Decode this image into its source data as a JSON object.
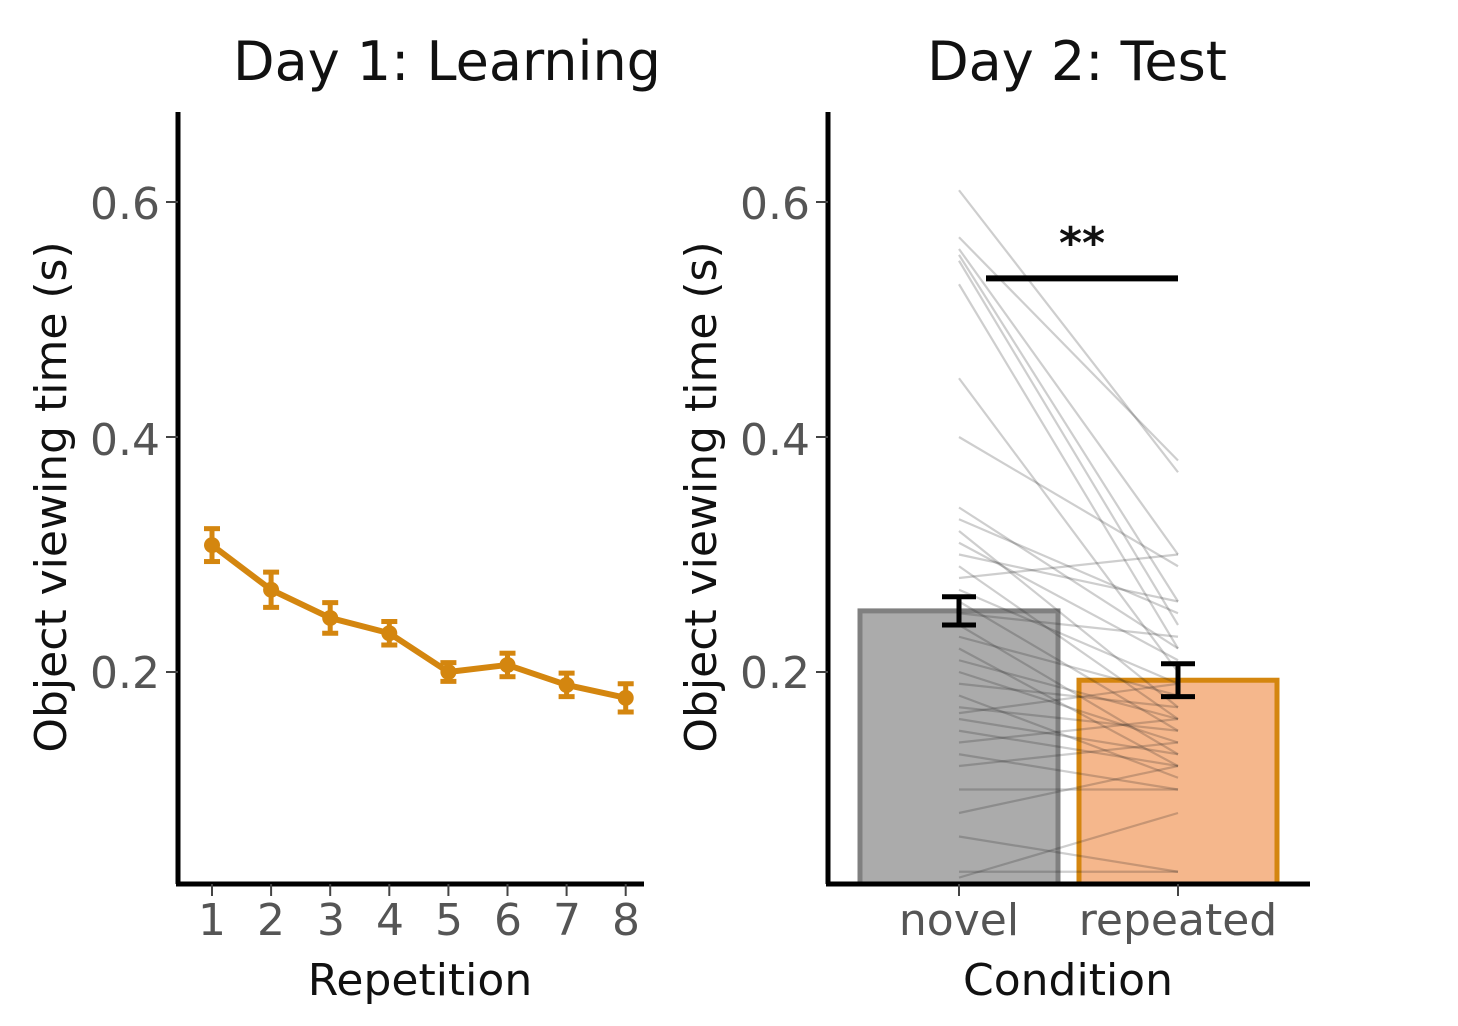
{
  "chart_data": [
    {
      "type": "line",
      "title": "Day 1: Learning",
      "xlabel": "Repetition",
      "ylabel": "Object viewing time (s)",
      "x": [
        "1",
        "2",
        "3",
        "4",
        "5",
        "6",
        "7",
        "8"
      ],
      "series": [
        {
          "name": "repeated",
          "color": "#D4860F",
          "values": [
            0.308,
            0.27,
            0.246,
            0.233,
            0.2,
            0.206,
            0.189,
            0.178
          ],
          "error": [
            0.014,
            0.015,
            0.013,
            0.01,
            0.008,
            0.01,
            0.01,
            0.012
          ]
        }
      ],
      "ylim": [
        0.02,
        0.68
      ],
      "yticks": [
        "0.2",
        "0.4",
        "0.6"
      ],
      "grid": false
    },
    {
      "type": "bar",
      "title": "Day 2: Test",
      "xlabel": "Condition",
      "ylabel": "Object viewing time (s)",
      "categories": [
        "novel",
        "repeated"
      ],
      "values": [
        0.252,
        0.193
      ],
      "error": [
        0.012,
        0.014
      ],
      "fill_colors": [
        "#ABABAB",
        "#F5B78C"
      ],
      "edge_colors": [
        "#808080",
        "#D4860F"
      ],
      "ylim": [
        0.02,
        0.68
      ],
      "yticks": [
        "0.2",
        "0.4",
        "0.6"
      ],
      "significance": {
        "label": "**",
        "between": [
          "novel",
          "repeated"
        ],
        "y": 0.535
      },
      "subject_lines": [
        [
          0.61,
          0.37
        ],
        [
          0.57,
          0.38
        ],
        [
          0.56,
          0.3
        ],
        [
          0.555,
          0.26
        ],
        [
          0.55,
          0.24
        ],
        [
          0.53,
          0.22
        ],
        [
          0.45,
          0.2
        ],
        [
          0.4,
          0.29
        ],
        [
          0.34,
          0.22
        ],
        [
          0.33,
          0.25
        ],
        [
          0.32,
          0.17
        ],
        [
          0.31,
          0.21
        ],
        [
          0.3,
          0.26
        ],
        [
          0.29,
          0.16
        ],
        [
          0.28,
          0.3
        ],
        [
          0.27,
          0.19
        ],
        [
          0.26,
          0.15
        ],
        [
          0.25,
          0.23
        ],
        [
          0.24,
          0.13
        ],
        [
          0.23,
          0.18
        ],
        [
          0.22,
          0.12
        ],
        [
          0.21,
          0.16
        ],
        [
          0.2,
          0.14
        ],
        [
          0.19,
          0.17
        ],
        [
          0.18,
          0.11
        ],
        [
          0.17,
          0.15
        ],
        [
          0.165,
          0.19
        ],
        [
          0.16,
          0.13
        ],
        [
          0.15,
          0.12
        ],
        [
          0.14,
          0.16
        ],
        [
          0.13,
          0.1
        ],
        [
          0.12,
          0.14
        ],
        [
          0.1,
          0.1
        ],
        [
          0.08,
          0.12
        ],
        [
          0.06,
          0.03
        ],
        [
          0.03,
          0.03
        ],
        [
          0.025,
          0.08
        ]
      ]
    }
  ]
}
